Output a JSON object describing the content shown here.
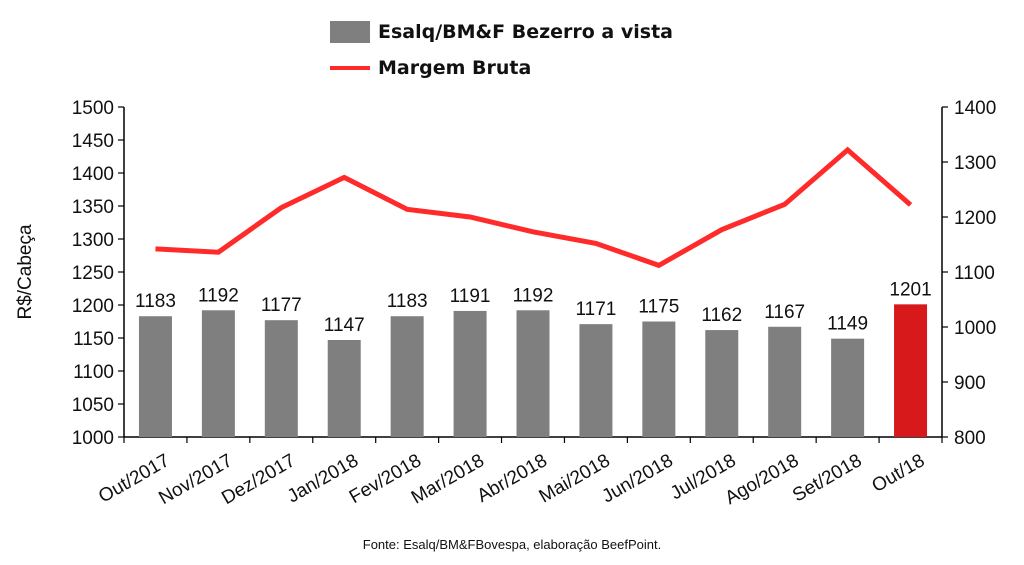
{
  "chart_data": {
    "type": "bar+line",
    "categories": [
      "Out/2017",
      "Nov/2017",
      "Dez/2017",
      "Jan/2018",
      "Fev/2018",
      "Mar/2018",
      "Abr/2018",
      "Mai/2018",
      "Jun/2018",
      "Jul/2018",
      "Ago/2018",
      "Set/2018",
      "Out/18"
    ],
    "series": [
      {
        "name": "Esalq/BM&F Bezerro a vista",
        "type": "bar",
        "axis": "left",
        "values": [
          1183,
          1192,
          1177,
          1147,
          1183,
          1191,
          1192,
          1171,
          1175,
          1162,
          1167,
          1149,
          1201
        ],
        "color": "#7f7f7f",
        "highlight_color": "#d7191c",
        "highlight_index": 12
      },
      {
        "name": "Margem Bruta",
        "type": "line",
        "axis": "right",
        "values": [
          1142,
          1136,
          1217,
          1272,
          1214,
          1200,
          1173,
          1152,
          1112,
          1177,
          1223,
          1322,
          1222
        ],
        "color": "#ff2a2a"
      }
    ],
    "ylabel": "R$/Cabeça",
    "ylim": [
      1000,
      1500
    ],
    "yticks": [
      1000,
      1050,
      1100,
      1150,
      1200,
      1250,
      1300,
      1350,
      1400,
      1450,
      1500
    ],
    "y2lim": [
      800,
      1400
    ],
    "y2ticks": [
      800,
      900,
      1000,
      1100,
      1200,
      1300,
      1400
    ],
    "grid": false,
    "legend_position": "top-center"
  },
  "legend": {
    "bar_label": "Esalq/BM&F Bezerro a vista",
    "line_label": "Margem Bruta"
  },
  "source": "Fonte: Esalq/BM&FBovespa, elaboração BeefPoint."
}
